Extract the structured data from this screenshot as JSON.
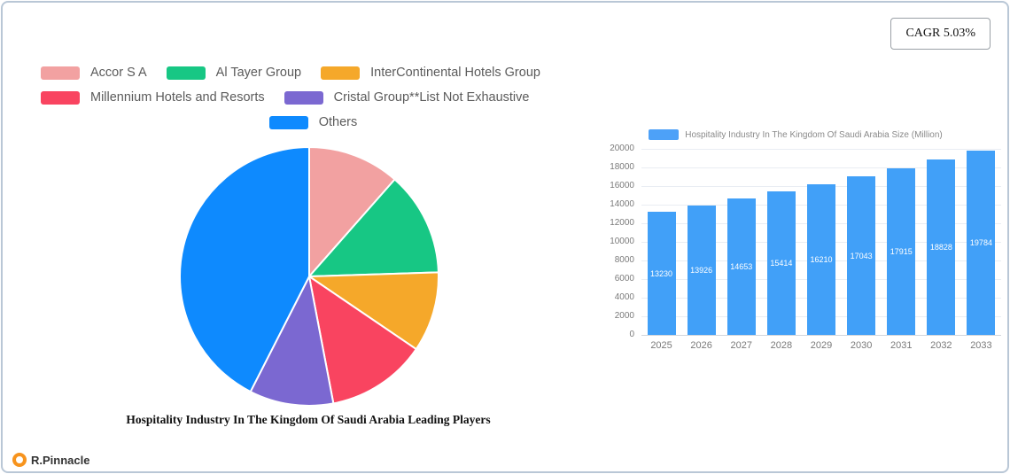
{
  "badge": {
    "label": "CAGR 5.03%"
  },
  "brand": {
    "name": "R.Pinnacle"
  },
  "chart_data": [
    {
      "type": "pie",
      "title": "Hospitality Industry In The Kingdom Of Saudi Arabia Leading Players",
      "labels": [
        "Accor S A",
        "Al Tayer Group",
        "InterContinental Hotels Group",
        "Millennium Hotels and Resorts",
        "Cristal Group**List Not Exhaustive",
        "Others"
      ],
      "values_pct": [
        11.5,
        13,
        10,
        12.5,
        10.5,
        42.5
      ],
      "colors": [
        "#f2a1a1",
        "#17c784",
        "#f5a82a",
        "#f94460",
        "#7b68d1",
        "#0e8afe"
      ],
      "start_angle": "top",
      "direction": "clockwise",
      "legend_rows": [
        [
          0,
          1,
          2
        ],
        [
          3,
          4
        ],
        [
          5
        ]
      ]
    },
    {
      "type": "bar",
      "legend": "Hospitality Industry In The Kingdom Of Saudi Arabia Size (Million)",
      "categories": [
        "2025",
        "2026",
        "2027",
        "2028",
        "2029",
        "2030",
        "2031",
        "2032",
        "2033"
      ],
      "values": [
        13230,
        13926,
        14653,
        15414,
        16210,
        17043,
        17915,
        18828,
        19784
      ],
      "ylim": [
        0,
        20000
      ],
      "ytick_step": 2000,
      "bar_color": "#41a0f8",
      "grid": true,
      "legend_position": "top",
      "value_labels": "inside-white"
    }
  ]
}
